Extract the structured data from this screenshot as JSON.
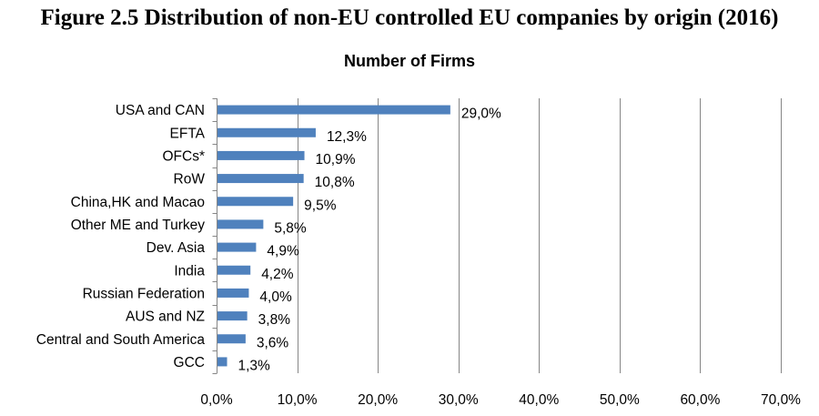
{
  "figure": {
    "title": "Figure 2.5 Distribution of non-EU controlled EU companies by origin (2016)"
  },
  "chart_data": {
    "type": "bar",
    "orientation": "horizontal",
    "title": "Number of Firms",
    "categories": [
      "USA and CAN",
      "EFTA",
      "OFCs*",
      "RoW",
      "China,HK and Macao",
      "Other ME and Turkey",
      "Dev. Asia",
      "India",
      "Russian Federation",
      "AUS and NZ",
      "Central and South America",
      "GCC"
    ],
    "values": [
      29.0,
      12.3,
      10.9,
      10.8,
      9.5,
      5.8,
      4.9,
      4.2,
      4.0,
      3.8,
      3.6,
      1.3
    ],
    "value_labels": [
      "29,0%",
      "12,3%",
      "10,9%",
      "10,8%",
      "9,5%",
      "5,8%",
      "4,9%",
      "4,2%",
      "4,0%",
      "3,8%",
      "3,6%",
      "1,3%"
    ],
    "x_ticks": [
      0,
      10,
      20,
      30,
      40,
      50,
      60,
      70
    ],
    "x_tick_labels": [
      "0,0%",
      "10,0%",
      "20,0%",
      "30,0%",
      "40,0%",
      "50,0%",
      "60,0%",
      "70,0%"
    ],
    "xlim": [
      0,
      70
    ],
    "xlabel": "",
    "ylabel": "",
    "grid": "vertical",
    "legend": "none",
    "colors": {
      "bar": "#4f81bd",
      "grid": "#868686",
      "text": "#000000"
    }
  }
}
